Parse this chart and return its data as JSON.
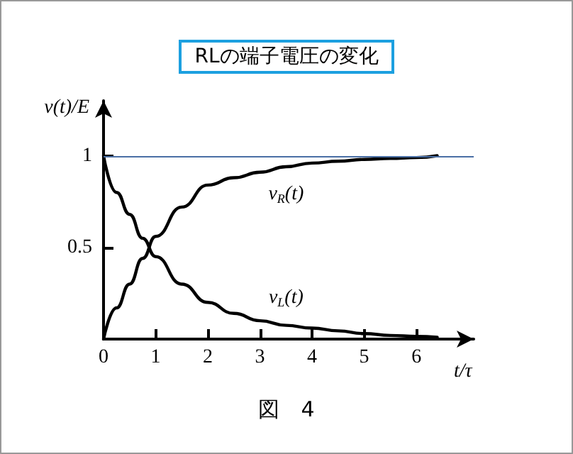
{
  "chart_data": {
    "type": "line",
    "title": "RLの端子電圧の変化",
    "ylabel": "v(t)/E",
    "xlabel": "t/τ",
    "x": [
      0,
      0.25,
      0.5,
      0.75,
      1,
      1.5,
      2,
      2.5,
      3,
      3.5,
      4,
      4.5,
      5,
      5.5,
      6,
      6.4
    ],
    "series": [
      {
        "name": "v$_{R}$(t)",
        "color": "#000000",
        "values": [
          0,
          0.17,
          0.3,
          0.44,
          0.56,
          0.72,
          0.84,
          0.88,
          0.91,
          0.94,
          0.96,
          0.97,
          0.98,
          0.985,
          0.99,
          1.0
        ]
      },
      {
        "name": "v$_{L}$(t)",
        "color": "#000000",
        "values": [
          1,
          0.8,
          0.68,
          0.55,
          0.45,
          0.3,
          0.2,
          0.14,
          0.1,
          0.075,
          0.06,
          0.045,
          0.03,
          0.02,
          0.015,
          0.01
        ]
      }
    ],
    "xlim": [
      0,
      7.1
    ],
    "xticks": [
      0,
      1,
      2,
      3,
      4,
      5,
      6
    ],
    "ylim": [
      0,
      1.3
    ],
    "yticks": [
      0.5,
      1
    ],
    "ref_lines": [
      {
        "axis": "y",
        "value": 1,
        "color": "#4a6fa5"
      }
    ],
    "annotations": [
      "図　4"
    ],
    "grid": false,
    "marker": "none",
    "line_style": "solid"
  }
}
